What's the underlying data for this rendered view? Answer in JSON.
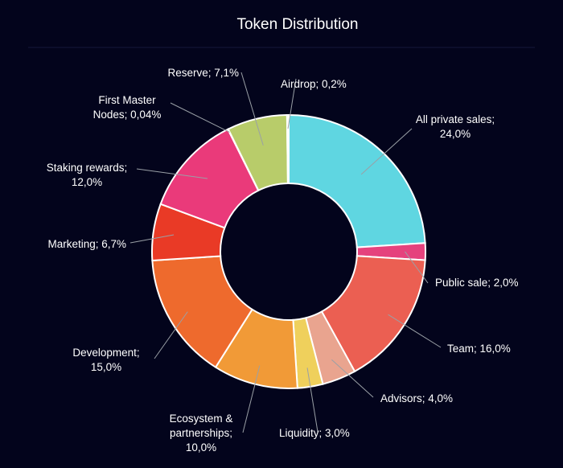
{
  "chart_data": {
    "type": "pie",
    "title": "Token Distribution",
    "donut": true,
    "legend": "none",
    "slices": [
      {
        "name": "All private sales",
        "value": 24.0,
        "color": "#5fd6e1",
        "label_lines": [
          "All private sales;",
          "24,0%"
        ]
      },
      {
        "name": "Public sale",
        "value": 2.0,
        "color": "#e5427d",
        "label_lines": [
          "Public sale; 2,0%"
        ]
      },
      {
        "name": "Team",
        "value": 16.0,
        "color": "#eb5f52",
        "label_lines": [
          "Team; 16,0%"
        ]
      },
      {
        "name": "Advisors",
        "value": 4.0,
        "color": "#e9a48f",
        "label_lines": [
          "Advisors; 4,0%"
        ]
      },
      {
        "name": "Liquidity",
        "value": 3.0,
        "color": "#efd05c",
        "label_lines": [
          "Liquidity; 3,0%"
        ]
      },
      {
        "name": "Ecosystem & partnerships",
        "value": 10.0,
        "color": "#f19a37",
        "label_lines": [
          "Ecosystem &",
          "partnerships;",
          "10,0%"
        ]
      },
      {
        "name": "Development",
        "value": 15.0,
        "color": "#ee6a2d",
        "label_lines": [
          "Development;",
          "15,0%"
        ]
      },
      {
        "name": "Marketing",
        "value": 6.7,
        "color": "#e93a26",
        "label_lines": [
          "Marketing; 6,7%"
        ]
      },
      {
        "name": "Staking rewards",
        "value": 12.0,
        "color": "#ea3a7a",
        "label_lines": [
          "Staking rewards;",
          "12,0%"
        ]
      },
      {
        "name": "First Master Nodes",
        "value": 0.04,
        "color": "#c93c6c",
        "label_lines": [
          "First Master",
          "Nodes; 0,04%"
        ]
      },
      {
        "name": "Reserve",
        "value": 7.1,
        "color": "#b8cc6a",
        "label_lines": [
          "Reserve; 7,1%"
        ]
      },
      {
        "name": "Airdrop",
        "value": 0.2,
        "color": "#d8e07a",
        "label_lines": [
          "Airdrop; 0,2%"
        ]
      }
    ]
  }
}
